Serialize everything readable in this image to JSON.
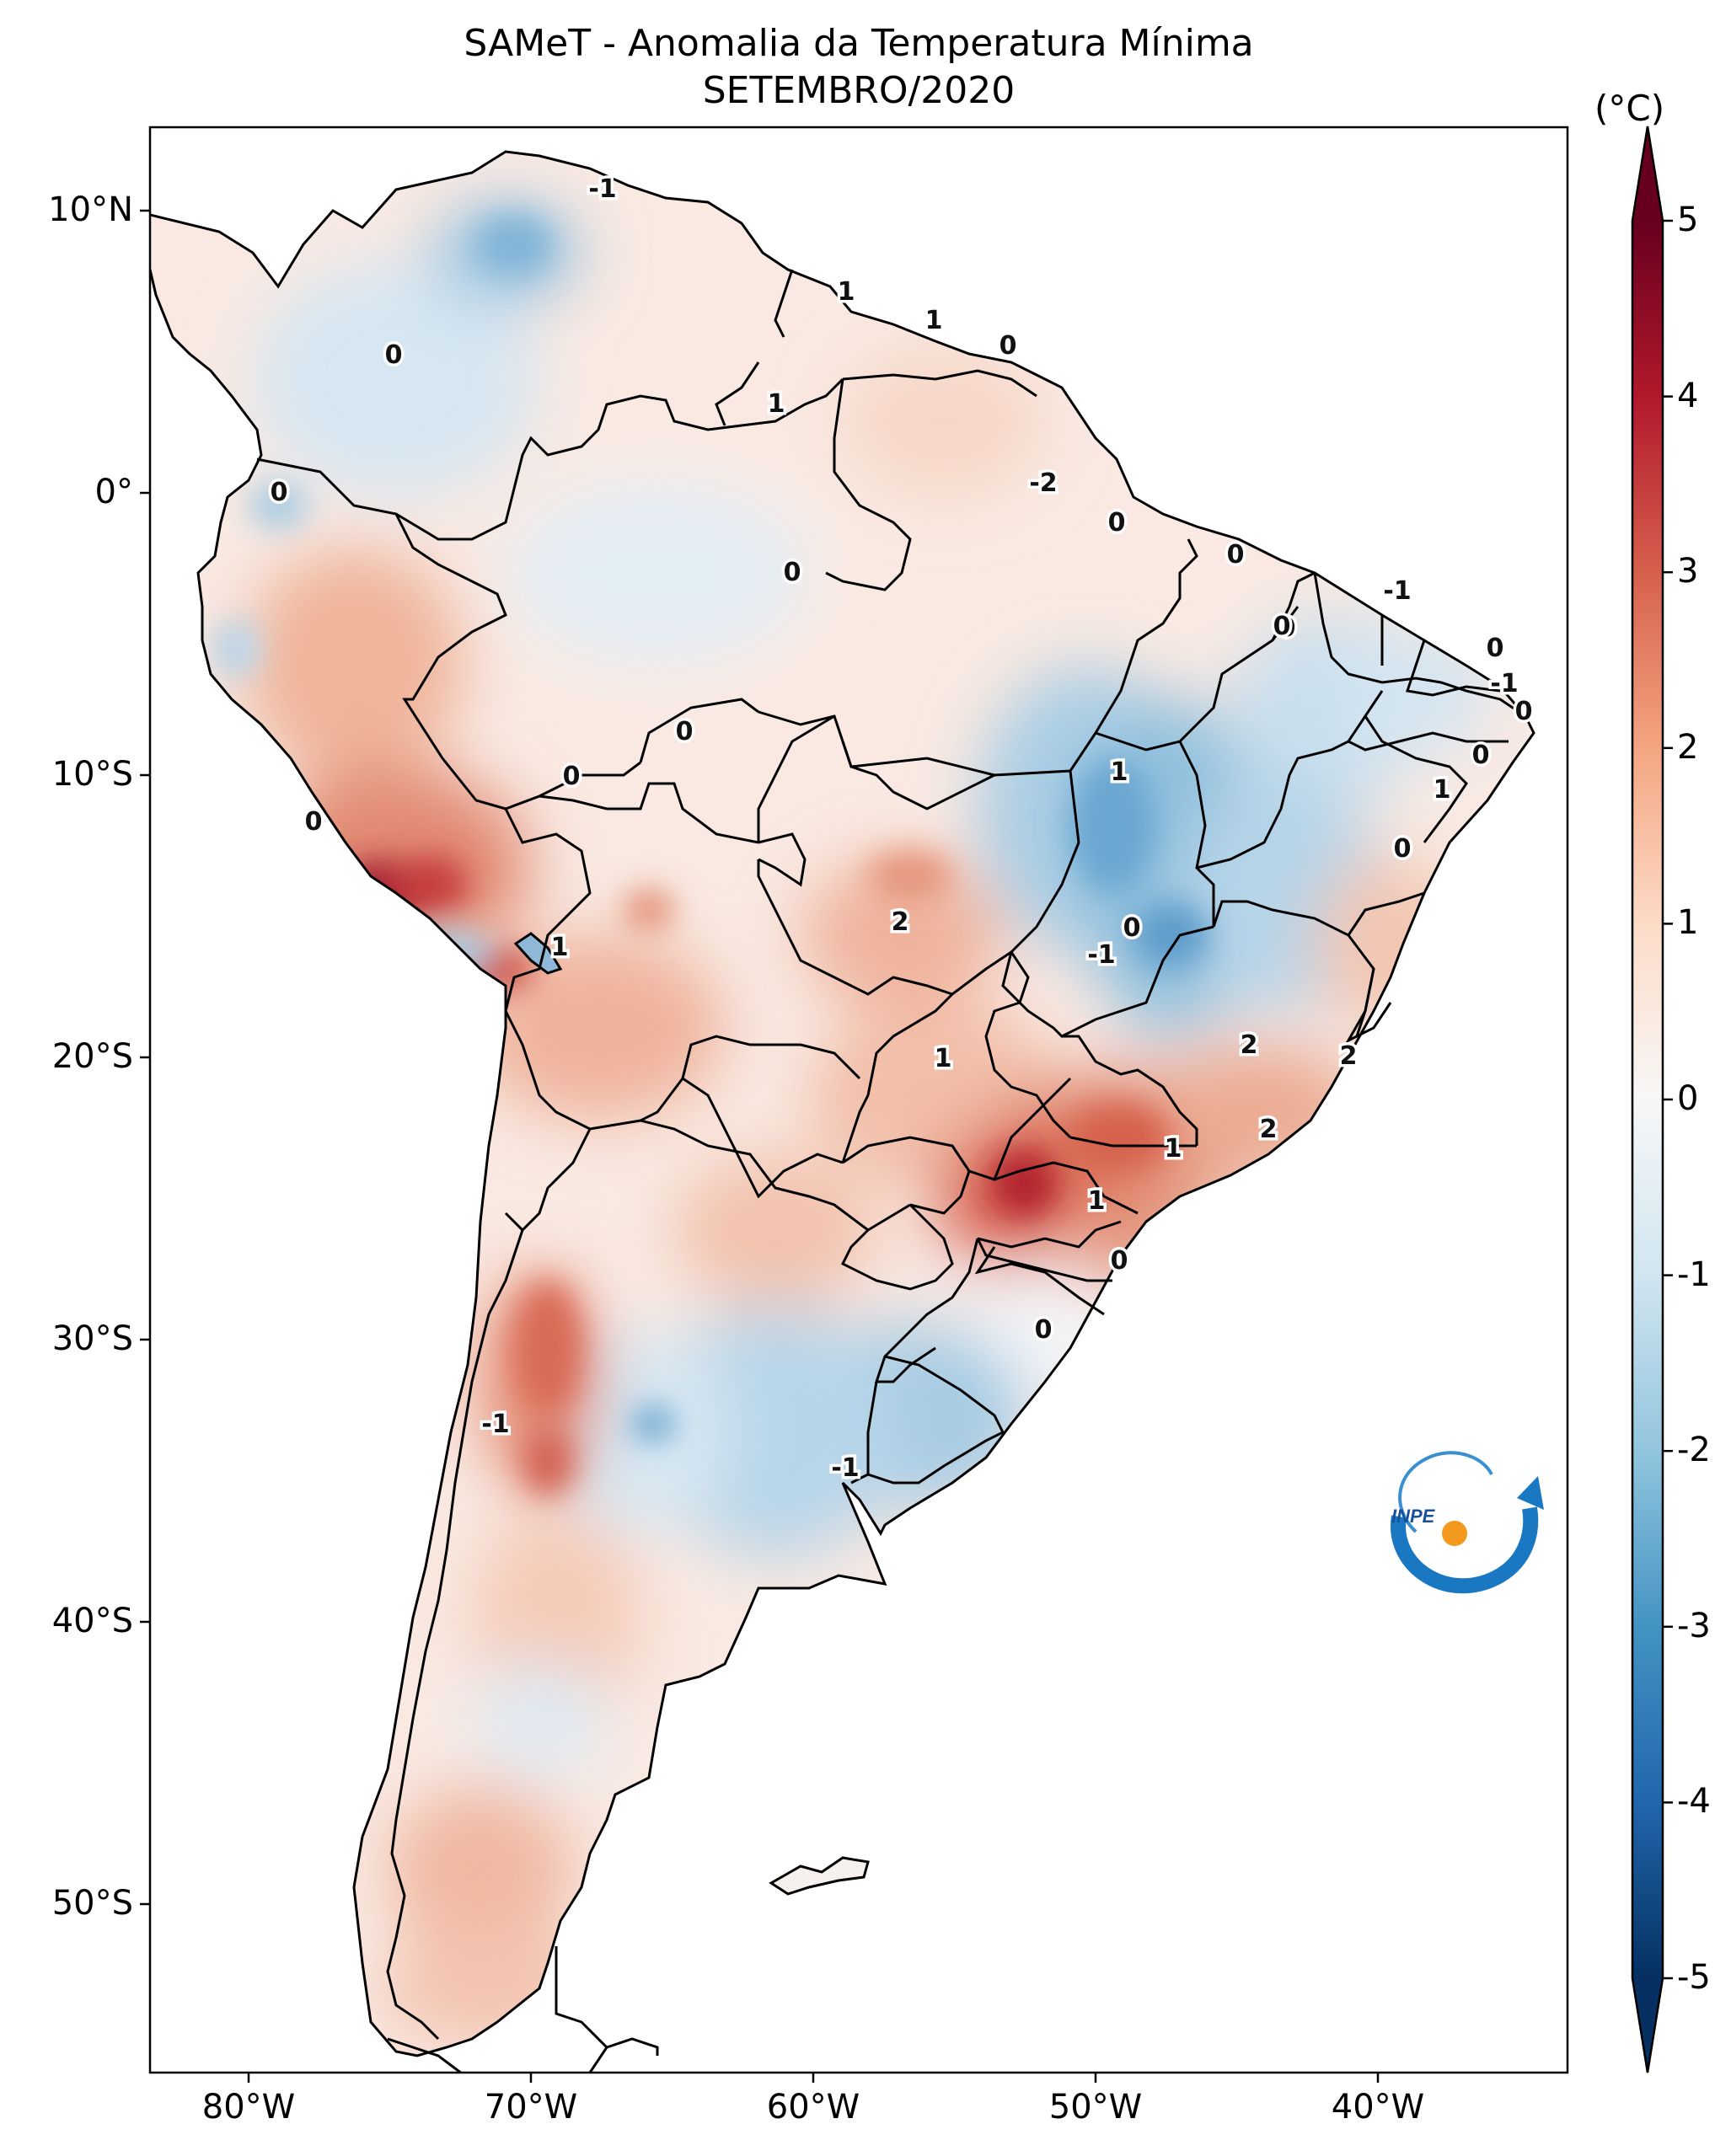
{
  "title": {
    "line1": "SAMeT - Anomalia da Temperatura Mínima",
    "line2": "SETEMBRO/2020"
  },
  "axes": {
    "lat_labels": [
      "10°N",
      "0°",
      "10°S",
      "20°S",
      "30°S",
      "40°S",
      "50°S"
    ],
    "lon_labels": [
      "80°W",
      "70°W",
      "60°W",
      "50°W",
      "40°W"
    ]
  },
  "colorbar": {
    "units": "(°C)",
    "ticks": [
      "5",
      "4",
      "3",
      "2",
      "1",
      "0",
      "-1",
      "-2",
      "-3",
      "-4",
      "-5"
    ],
    "range": [
      -5,
      5
    ],
    "colors": {
      "cold_max": "#053061",
      "cold": "#4393c3",
      "neutral": "#f7f7f7",
      "warm": "#d6604d",
      "warm_max": "#67001f"
    }
  },
  "contour_labels": [
    "-1",
    "1",
    "1",
    "0",
    "0",
    "1",
    "0",
    "-2",
    "0",
    "0",
    "0",
    "0",
    "-1",
    "0",
    "0",
    "-1",
    "0",
    "0",
    "1",
    "1",
    "0",
    "0",
    "0",
    "0",
    "2",
    "0",
    "-1",
    "1",
    "1",
    "2",
    "2",
    "2",
    "1",
    "1",
    "0",
    "0",
    "-1",
    "-1"
  ],
  "logo": {
    "text": "INPE"
  }
}
